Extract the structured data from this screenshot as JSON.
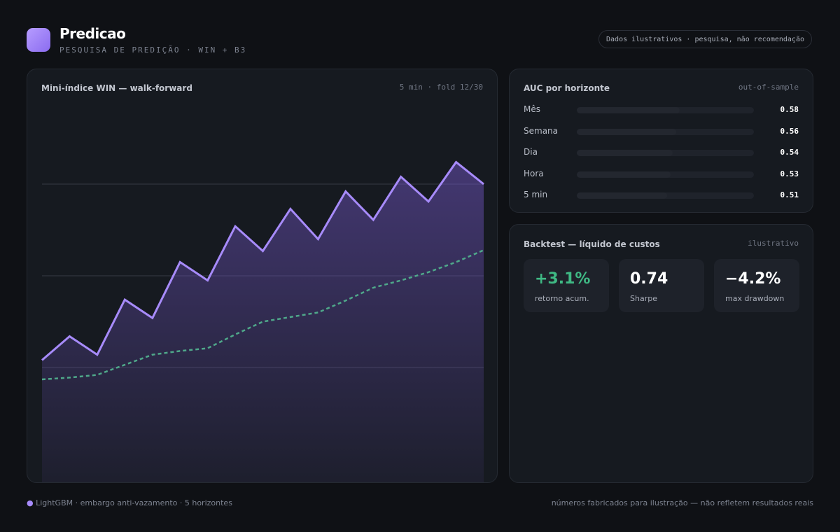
{
  "header": {
    "title": "Predicao",
    "subtitle": "PESQUISA DE PREDIÇÃO · WIN + B3",
    "badge": "Dados ilustrativos · pesquisa, não recomendação"
  },
  "main_chart": {
    "type": "line",
    "title": "Mini-índice WIN — walk-forward",
    "meta": "5 min · fold 12/30",
    "ylim": [
      0,
      4
    ],
    "yticks": [
      1,
      2,
      3
    ],
    "grid": true,
    "series": [
      {
        "color": "#a78bfa",
        "style": "solid",
        "values": [
          1.08,
          1.34,
          1.14,
          1.74,
          1.54,
          2.15,
          1.95,
          2.54,
          2.27,
          2.73,
          2.4,
          2.92,
          2.61,
          3.08,
          2.81,
          3.24,
          3.0
        ]
      },
      {
        "color": "#4fa88a",
        "style": "dashed",
        "values": [
          0.87,
          0.89,
          0.92,
          1.03,
          1.14,
          1.18,
          1.21,
          1.36,
          1.5,
          1.55,
          1.6,
          1.73,
          1.87,
          1.95,
          2.04,
          2.15,
          2.28
        ]
      }
    ]
  },
  "auc_panel": {
    "title": "AUC por horizonte",
    "meta": "out-of-sample",
    "rows": [
      {
        "label": "Mês",
        "value": 0.58
      },
      {
        "label": "Semana",
        "value": 0.56
      },
      {
        "label": "Dia",
        "value": 0.54
      },
      {
        "label": "Hora",
        "value": 0.53
      },
      {
        "label": "5 min",
        "value": 0.51
      }
    ]
  },
  "backtest": {
    "title": "Backtest — líquido de custos",
    "meta": "ilustrativo",
    "kpis": [
      {
        "value": "+3.1%",
        "label": "retorno acum.",
        "color": "#3fb984"
      },
      {
        "value": "0.74",
        "label": "Sharpe",
        "color": "#ffffff"
      },
      {
        "value": "−4.2%",
        "label": "max drawdown",
        "color": "#ffffff"
      }
    ]
  },
  "footer": {
    "left": "LightGBM · embargo anti-vazamento · 5 horizontes",
    "right": "números fabricados para ilustração — não refletem resultados reais"
  }
}
